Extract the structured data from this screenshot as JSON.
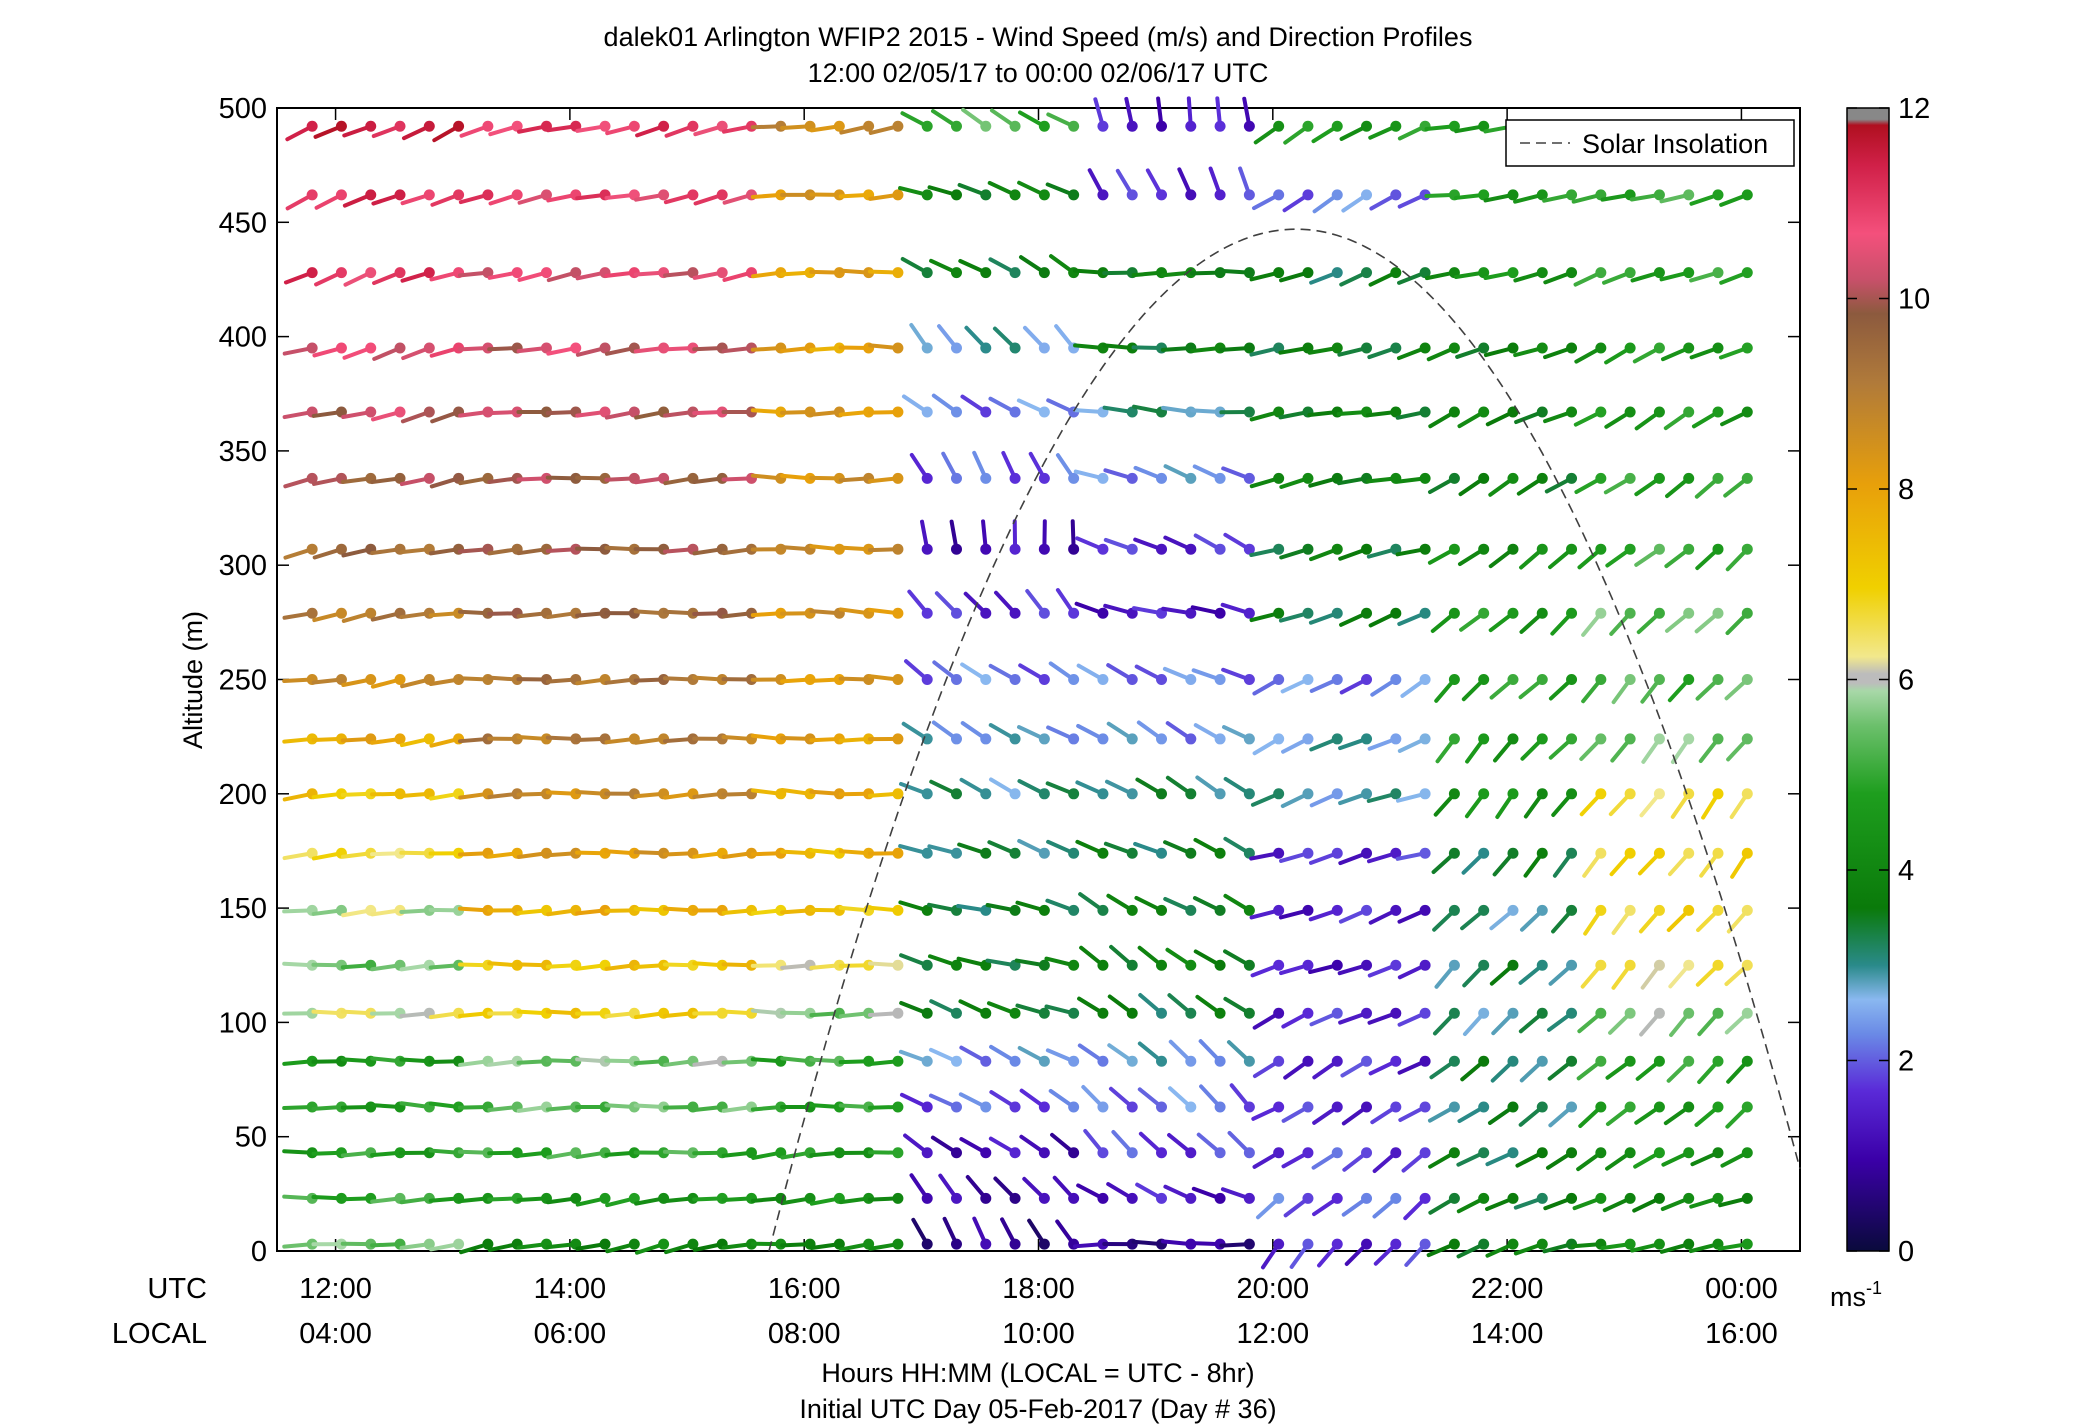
{
  "chart_data": {
    "type": "wind-barb-profile",
    "title": "dalek01 Arlington WFIP2 2015 - Wind Speed (m/s) and Direction Profiles",
    "subtitle": "12:00 02/05/17 to 00:00 02/06/17  UTC",
    "ylabel": "Altitude (m)",
    "xlabel": "Hours HH:MM  (LOCAL = UTC - 8hr)",
    "xlabel2": "Initial UTC Day 05-Feb-2017 (Day # 36)",
    "xrow_utc_label": "UTC",
    "xrow_local_label": "LOCAL",
    "ylim": [
      0,
      500
    ],
    "yticks": [
      0,
      50,
      100,
      150,
      200,
      250,
      300,
      350,
      400,
      450,
      500
    ],
    "x_utc_ticks": [
      "12:00",
      "14:00",
      "16:00",
      "18:00",
      "20:00",
      "22:00",
      "00:00"
    ],
    "x_local_ticks": [
      "04:00",
      "06:00",
      "08:00",
      "10:00",
      "12:00",
      "14:00",
      "16:00"
    ],
    "xlim_utc_hours": [
      11.5,
      24.5
    ],
    "legend": {
      "label": "Solar Insolation",
      "placement": "top-right"
    },
    "colorbar": {
      "range": [
        0,
        12
      ],
      "ticks": [
        0,
        2,
        4,
        6,
        8,
        10,
        12
      ],
      "unit_label": "ms",
      "unit_exp": "-1"
    },
    "solar_insolation": {
      "start_utc": 15.7,
      "peak_utc": 20.2,
      "end_utc": 24.5,
      "peak_altitude": 447,
      "end_altitude": 36
    },
    "barb_heights": [
      3,
      23,
      43,
      63,
      83,
      104,
      125,
      149,
      174,
      200,
      224,
      250,
      279,
      307,
      338,
      367,
      395,
      428,
      462,
      492
    ],
    "phases": [
      {
        "from": 11.8,
        "to": 13.3,
        "speed": [
          5.5,
          5.0,
          4.8,
          4.7,
          4.6,
          6.2,
          5.5,
          6.0,
          6.6,
          7.2,
          7.8,
          8.5,
          9.0,
          9.4,
          9.8,
          10.2,
          10.5,
          11.0,
          11.2,
          11.5
        ],
        "dir": [
          265,
          268,
          270,
          272,
          270,
          268,
          267,
          266,
          265,
          263,
          262,
          261,
          260,
          258,
          257,
          256,
          253,
          250,
          247,
          245
        ]
      },
      {
        "from": 13.3,
        "to": 15.6,
        "speed": [
          4.0,
          4.5,
          5.0,
          5.4,
          5.6,
          7.0,
          7.2,
          7.6,
          8.2,
          8.6,
          9.0,
          9.2,
          9.5,
          9.7,
          9.9,
          10.1,
          10.3,
          10.5,
          10.8,
          11.0
        ],
        "dir": [
          258,
          262,
          266,
          268,
          268,
          268,
          268,
          268,
          268,
          268,
          268,
          268,
          268,
          267,
          266,
          264,
          262,
          260,
          258,
          256
        ]
      },
      {
        "from": 15.6,
        "to": 17.0,
        "speed": [
          4.0,
          4.4,
          4.6,
          4.8,
          5.0,
          5.6,
          6.4,
          7.2,
          7.6,
          7.8,
          8.0,
          8.2,
          8.4,
          8.5,
          8.4,
          8.2,
          8.0,
          8.0,
          8.2,
          8.6
        ],
        "dir": [
          265,
          265,
          265,
          268,
          270,
          270,
          270,
          270,
          270,
          272,
          272,
          272,
          272,
          270,
          270,
          270,
          270,
          268,
          265,
          262
        ]
      },
      {
        "from": 17.0,
        "to": 18.5,
        "speed": [
          0.8,
          1.0,
          1.2,
          2.0,
          2.4,
          3.6,
          3.6,
          3.4,
          3.2,
          3.0,
          2.6,
          2.2,
          1.6,
          1.2,
          2.0,
          2.2,
          2.8,
          3.6,
          3.8,
          5.2
        ],
        "dir": [
          330,
          320,
          305,
          300,
          295,
          290,
          285,
          285,
          290,
          295,
          300,
          305,
          320,
          355,
          330,
          300,
          320,
          300,
          290,
          300
        ]
      },
      {
        "from": 18.5,
        "to": 20.0,
        "speed": [
          0.8,
          1.4,
          1.8,
          2.2,
          2.6,
          3.4,
          3.8,
          3.6,
          3.4,
          3.2,
          2.4,
          2.2,
          1.4,
          1.6,
          2.4,
          3.0,
          3.6,
          3.8,
          1.6,
          1.4
        ],
        "dir": [
          270,
          295,
          315,
          315,
          310,
          305,
          305,
          300,
          295,
          300,
          300,
          295,
          285,
          295,
          290,
          275,
          270,
          270,
          335,
          350
        ]
      },
      {
        "from": 20.0,
        "to": 21.5,
        "speed": [
          1.6,
          2.0,
          1.8,
          1.6,
          1.6,
          1.6,
          1.4,
          1.5,
          1.6,
          2.8,
          2.8,
          2.2,
          3.4,
          3.6,
          3.8,
          3.8,
          3.6,
          3.4,
          2.2,
          4.6
        ],
        "dir": [
          220,
          230,
          235,
          240,
          240,
          245,
          250,
          250,
          255,
          250,
          245,
          240,
          250,
          255,
          258,
          260,
          255,
          250,
          240,
          240
        ]
      },
      {
        "from": 21.5,
        "to": 22.8,
        "speed": [
          3.8,
          3.6,
          3.4,
          3.2,
          3.2,
          3.0,
          3.2,
          3.0,
          3.4,
          4.4,
          4.6,
          4.8,
          4.6,
          4.2,
          3.8,
          3.8,
          3.8,
          4.4,
          4.6,
          4.8
        ],
        "dir": [
          250,
          245,
          240,
          235,
          232,
          228,
          225,
          225,
          222,
          220,
          222,
          225,
          228,
          235,
          240,
          245,
          250,
          255,
          262,
          265
        ]
      },
      {
        "from": 22.8,
        "to": 24.2,
        "speed": [
          4.2,
          4.0,
          4.4,
          4.6,
          4.8,
          5.6,
          6.4,
          6.8,
          6.8,
          6.6,
          5.6,
          5.2,
          5.4,
          5.0,
          4.8,
          4.6,
          4.6,
          4.8,
          5.0,
          5.2
        ],
        "dir": [
          260,
          250,
          240,
          230,
          228,
          225,
          222,
          220,
          218,
          218,
          220,
          222,
          225,
          230,
          235,
          240,
          245,
          250,
          255,
          260
        ]
      }
    ]
  }
}
